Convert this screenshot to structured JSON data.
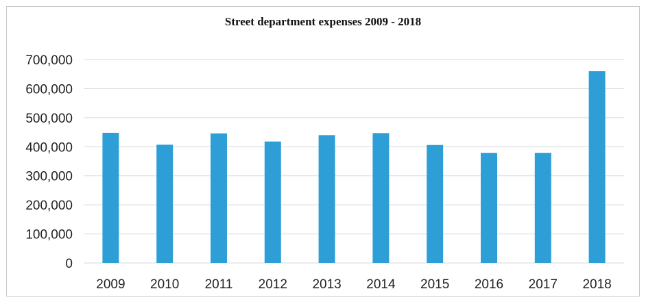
{
  "chart_data": {
    "type": "bar",
    "title": "Street department expenses 2009 - 2018",
    "xlabel": "",
    "ylabel": "",
    "categories": [
      "2009",
      "2010",
      "2011",
      "2012",
      "2013",
      "2014",
      "2015",
      "2016",
      "2017",
      "2018"
    ],
    "values": [
      448000,
      407000,
      446000,
      418000,
      440000,
      447000,
      406000,
      379000,
      379000,
      660000
    ],
    "ylim": [
      0,
      700000
    ],
    "yticks": [
      0,
      100000,
      200000,
      300000,
      400000,
      500000,
      600000,
      700000
    ],
    "ytick_labels": [
      "0",
      "100,000",
      "200,000",
      "300,000",
      "400,000",
      "500,000",
      "600,000",
      "700,000"
    ],
    "grid": true,
    "legend": "none",
    "bar_color": "#2e9fd6",
    "grid_color": "#d9d9d9"
  }
}
